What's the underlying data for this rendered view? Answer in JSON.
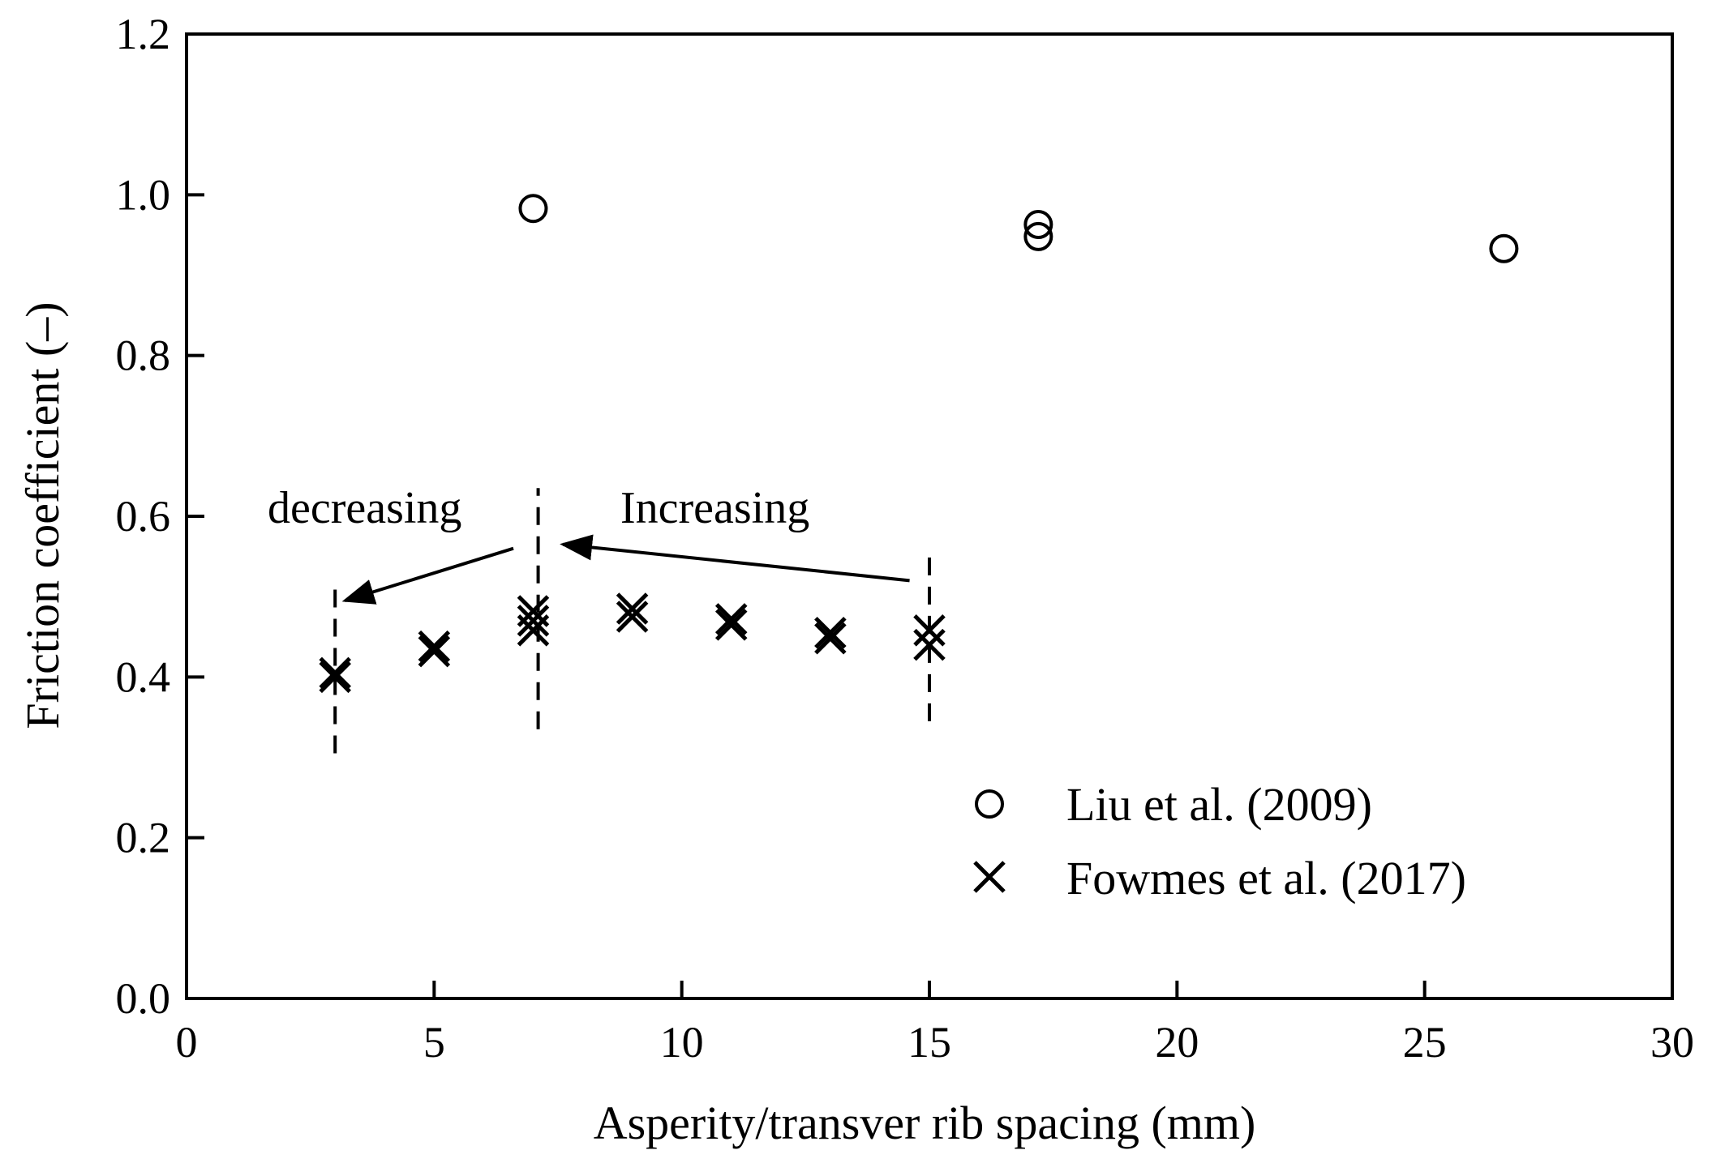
{
  "chart_data": {
    "type": "scatter",
    "title": "",
    "xlabel": "Asperity/transver rib spacing (mm)",
    "ylabel": "Friction coefficient (–)",
    "xlim": [
      0,
      30
    ],
    "ylim": [
      0.0,
      1.2
    ],
    "x_ticks": [
      0,
      5,
      10,
      15,
      20,
      25,
      30
    ],
    "x_tick_labels": [
      "0",
      "5",
      "10",
      "15",
      "20",
      "25",
      "30"
    ],
    "y_ticks": [
      0.0,
      0.2,
      0.4,
      0.6,
      0.8,
      1.0,
      1.2
    ],
    "y_tick_labels": [
      "0.0",
      "0.2",
      "0.4",
      "0.6",
      "0.8",
      "1.0",
      "1.2"
    ],
    "grid": false,
    "legend_position": "lower-right",
    "series": [
      {
        "name": "Liu et al. (2009)",
        "marker": "circle",
        "color": "#000000",
        "points": [
          {
            "x": 7.0,
            "y": 0.983
          },
          {
            "x": 17.2,
            "y": 0.963
          },
          {
            "x": 17.2,
            "y": 0.948
          },
          {
            "x": 26.6,
            "y": 0.933
          }
        ]
      },
      {
        "name": "Fowmes et al. (2017)",
        "marker": "x",
        "color": "#000000",
        "points": [
          {
            "x": 3.0,
            "y": 0.405
          },
          {
            "x": 3.0,
            "y": 0.4
          },
          {
            "x": 5.0,
            "y": 0.438
          },
          {
            "x": 5.0,
            "y": 0.432
          },
          {
            "x": 7.0,
            "y": 0.482
          },
          {
            "x": 7.0,
            "y": 0.47
          },
          {
            "x": 7.0,
            "y": 0.458
          },
          {
            "x": 9.0,
            "y": 0.485
          },
          {
            "x": 9.0,
            "y": 0.475
          },
          {
            "x": 11.0,
            "y": 0.472
          },
          {
            "x": 11.0,
            "y": 0.465
          },
          {
            "x": 13.0,
            "y": 0.455
          },
          {
            "x": 13.0,
            "y": 0.448
          },
          {
            "x": 15.0,
            "y": 0.458
          },
          {
            "x": 15.0,
            "y": 0.44
          }
        ]
      }
    ],
    "annotations": [
      {
        "text": "decreasing",
        "arrow_from": {
          "x": 6.6,
          "y": 0.56
        },
        "arrow_to": {
          "x": 3.2,
          "y": 0.495
        }
      },
      {
        "text": "Increasing",
        "arrow_from": {
          "x": 14.6,
          "y": 0.52
        },
        "arrow_to": {
          "x": 7.6,
          "y": 0.565
        }
      }
    ],
    "vertical_dashed_lines": [
      {
        "x": 3.0,
        "y_range": [
          0.305,
          0.515
        ]
      },
      {
        "x": 7.1,
        "y_range": [
          0.335,
          0.635
        ]
      },
      {
        "x": 15.0,
        "y_range": [
          0.345,
          0.555
        ]
      }
    ]
  }
}
